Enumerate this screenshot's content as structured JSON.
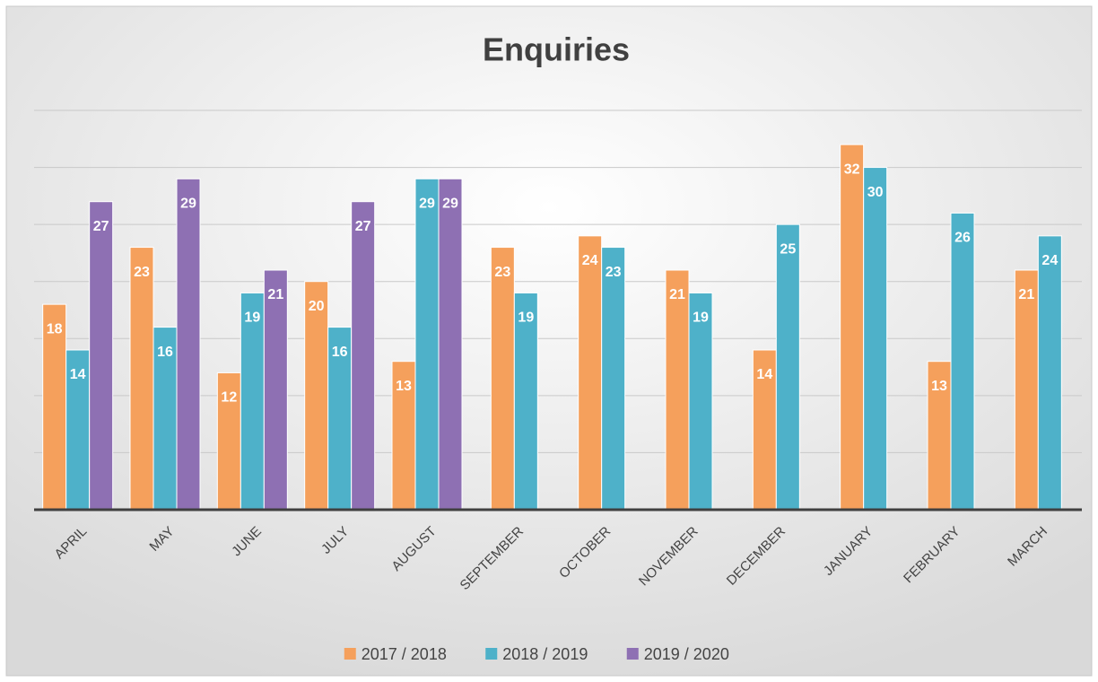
{
  "chart_data": {
    "type": "bar",
    "title": "Enquiries",
    "categories": [
      "APRIL",
      "MAY",
      "JUNE",
      "JULY",
      "AUGUST",
      "SEPTEMBER",
      "OCTOBER",
      "NOVEMBER",
      "DECEMBER",
      "JANUARY",
      "FEBRUARY",
      "MARCH"
    ],
    "series": [
      {
        "name": "2017 / 2018",
        "color": "#f5a05c",
        "values": [
          18,
          23,
          12,
          20,
          13,
          23,
          24,
          21,
          14,
          32,
          13,
          21
        ]
      },
      {
        "name": "2018 / 2019",
        "color": "#4eb1c9",
        "values": [
          14,
          16,
          19,
          16,
          29,
          19,
          23,
          19,
          25,
          30,
          26,
          24
        ]
      },
      {
        "name": "2019 / 2020",
        "color": "#8e70b3",
        "values": [
          27,
          29,
          21,
          27,
          29,
          null,
          null,
          null,
          null,
          null,
          null,
          null
        ]
      }
    ],
    "ylim": [
      0,
      35
    ],
    "yticks": [
      0,
      5,
      10,
      15,
      20,
      25,
      30,
      35
    ],
    "grid": true,
    "legend": "bottom"
  }
}
